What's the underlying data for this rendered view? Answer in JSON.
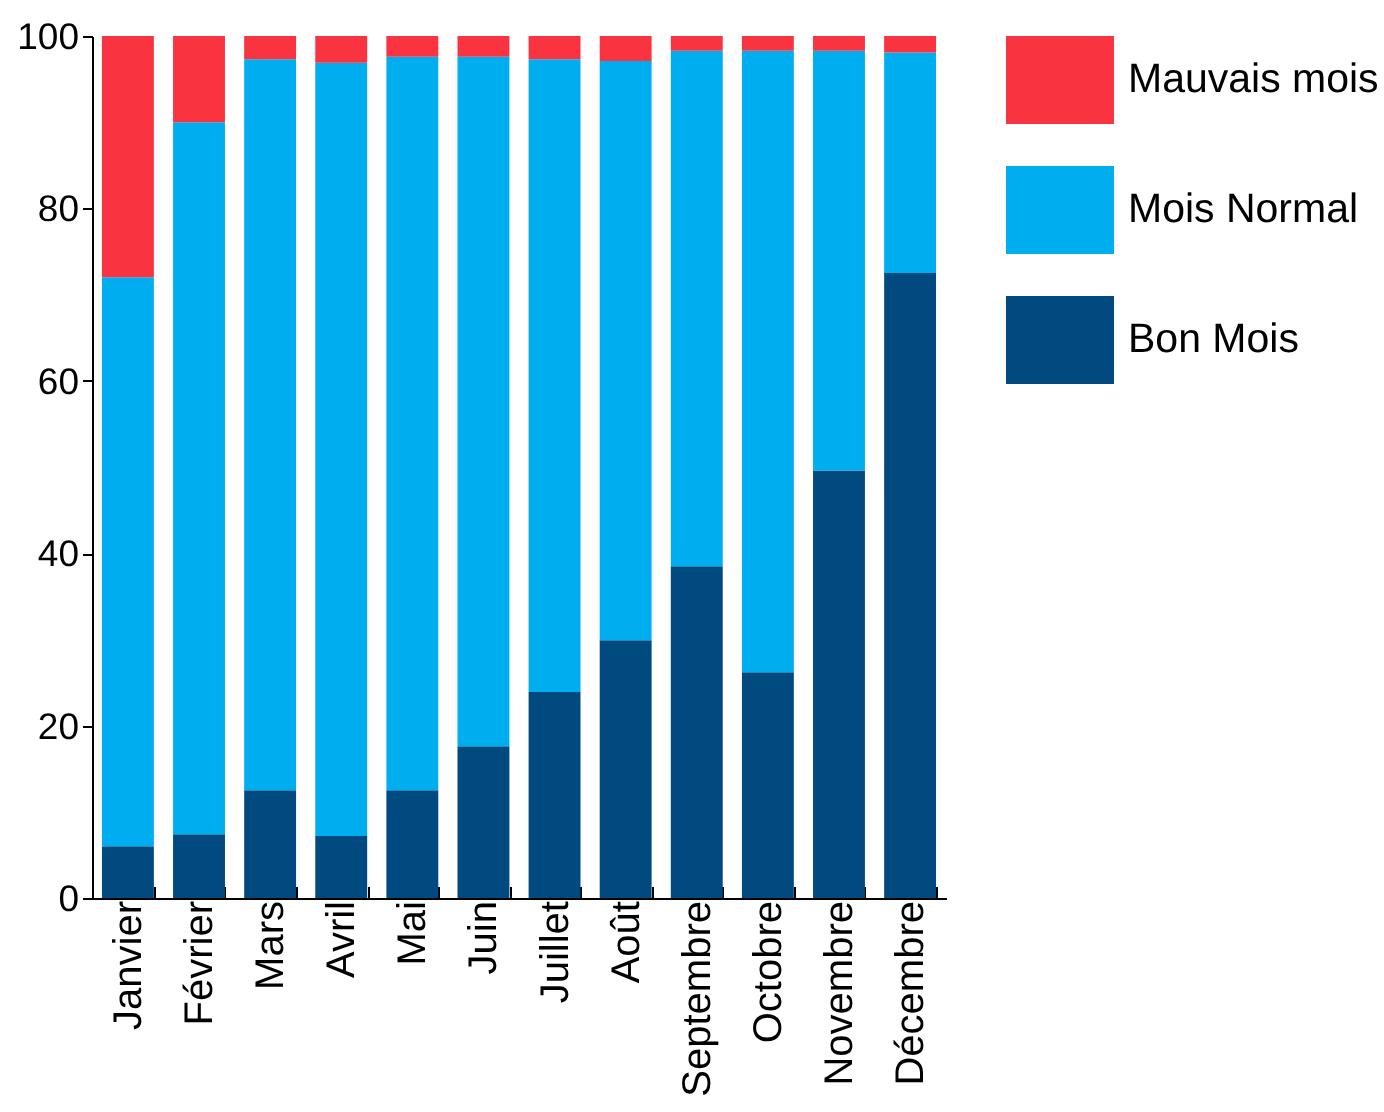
{
  "chart_data": {
    "type": "bar",
    "stacked": true,
    "categories": [
      "Janvier",
      "Février",
      "Mars",
      "Avril",
      "Mai",
      "Juin",
      "Juillet",
      "Août",
      "Septembre",
      "Octobre",
      "Novembre",
      "Décembre"
    ],
    "series": [
      {
        "name": "Bon Mois",
        "color": "#004a80",
        "values": [
          6.0,
          7.4,
          12.5,
          7.2,
          12.5,
          17.6,
          23.9,
          29.9,
          38.5,
          26.2,
          49.6,
          72.5
        ]
      },
      {
        "name": "Mois Normal",
        "color": "#00aeef",
        "values": [
          66.0,
          82.6,
          84.8,
          89.7,
          85.1,
          80.0,
          73.4,
          67.2,
          59.8,
          72.1,
          48.7,
          25.6
        ]
      },
      {
        "name": "Mauvais mois",
        "color": "#f9333f",
        "values": [
          28.0,
          10.0,
          2.7,
          3.1,
          2.4,
          2.4,
          2.7,
          2.9,
          1.7,
          1.7,
          1.7,
          1.9
        ]
      }
    ],
    "ylim": [
      0,
      100
    ],
    "yticks": [
      0,
      20,
      40,
      60,
      80,
      100
    ],
    "legend": "top right"
  }
}
